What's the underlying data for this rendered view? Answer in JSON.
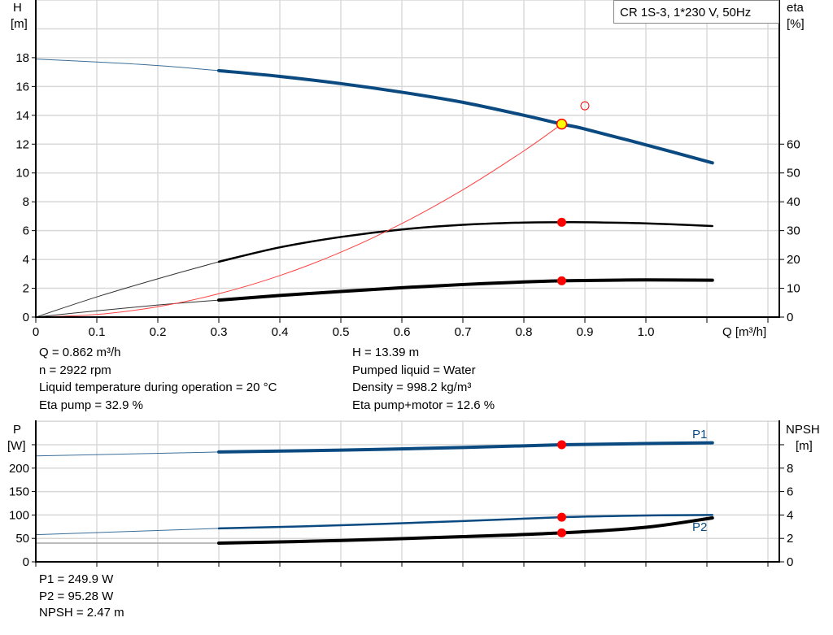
{
  "chart_data": [
    {
      "type": "line",
      "title": "CR 1S-3, 1*230 V, 50Hz",
      "xlabel": "Q [m³/h]",
      "ylabel_left": [
        "H",
        "[m]"
      ],
      "ylabel_right": [
        "eta",
        "[%]"
      ],
      "xlim": [
        0,
        1.2
      ],
      "ylim_left": [
        0,
        22
      ],
      "ylim_right": [
        0,
        110
      ],
      "x_ticks": [
        "0",
        "0.1",
        "0.2",
        "0.3",
        "0.4",
        "0.5",
        "0.6",
        "0.7",
        "0.8",
        "0.9",
        "1.0"
      ],
      "y_ticks_left": [
        "0",
        "2",
        "4",
        "6",
        "8",
        "10",
        "12",
        "14",
        "16",
        "18"
      ],
      "y_ticks_right": [
        "0",
        "10",
        "20",
        "30",
        "40",
        "50",
        "60"
      ],
      "grid": true,
      "extrapolated_below_q": 0.3,
      "series": [
        {
          "id": "H",
          "axis": "left",
          "color": "#0a4a80",
          "x": [
            0,
            0.1,
            0.2,
            0.3,
            0.4,
            0.5,
            0.6,
            0.7,
            0.8,
            0.862,
            0.9,
            1.0,
            1.109
          ],
          "y": [
            17.9,
            17.7,
            17.45,
            17.1,
            16.7,
            16.2,
            15.6,
            14.9,
            14.0,
            13.39,
            13.05,
            11.95,
            10.7
          ]
        },
        {
          "id": "eta_pump",
          "axis": "right",
          "color": "#000000",
          "x": [
            0,
            0.1,
            0.2,
            0.3,
            0.4,
            0.5,
            0.6,
            0.7,
            0.8,
            0.862,
            0.9,
            1.0,
            1.109
          ],
          "y": [
            0,
            7.0,
            13.3,
            19.2,
            24.2,
            27.8,
            30.4,
            32.0,
            32.8,
            32.9,
            32.9,
            32.5,
            31.6
          ]
        },
        {
          "id": "eta_pump_motor",
          "axis": "right",
          "color": "#000000",
          "x": [
            0,
            0.1,
            0.2,
            0.3,
            0.4,
            0.5,
            0.6,
            0.7,
            0.8,
            0.862,
            0.9,
            1.0,
            1.109
          ],
          "y": [
            0,
            2.2,
            4.2,
            5.9,
            7.5,
            8.9,
            10.2,
            11.3,
            12.2,
            12.6,
            12.7,
            12.9,
            12.8
          ]
        },
        {
          "id": "system_curve",
          "axis": "left",
          "color": "#ff4040",
          "x": [
            0,
            0.1,
            0.2,
            0.3,
            0.4,
            0.5,
            0.6,
            0.7,
            0.8,
            0.862
          ],
          "y": [
            0,
            0.18,
            0.72,
            1.62,
            2.88,
            4.5,
            6.49,
            8.83,
            11.53,
            13.39
          ]
        }
      ],
      "operating_point": {
        "q": 0.862,
        "h": 13.39,
        "eta_pump": 32.9,
        "eta_pump_motor": 12.6
      },
      "requested_point": {
        "q": 0.9,
        "h": 14.66
      }
    },
    {
      "type": "line",
      "xlabel": "",
      "ylabel_left": [
        "P",
        "[W]"
      ],
      "ylabel_right": [
        "NPSH",
        "[m]"
      ],
      "xlim": [
        0,
        1.2
      ],
      "ylim_left": [
        0,
        302
      ],
      "ylim_right": [
        0,
        12.08
      ],
      "y_ticks_left": [
        "0",
        "50",
        "100",
        "150",
        "200"
      ],
      "y_ticks_right": [
        "0",
        "2",
        "4",
        "6",
        "8"
      ],
      "grid": true,
      "extrapolated_below_q": 0.3,
      "series": [
        {
          "id": "P1",
          "name": "P1",
          "axis": "left",
          "color": "#0a4a80",
          "x": [
            0,
            0.3,
            0.5,
            0.7,
            0.862,
            1.0,
            1.109
          ],
          "y": [
            226,
            234.5,
            238.5,
            244,
            249.9,
            252.5,
            254
          ]
        },
        {
          "id": "P2",
          "name": "P2",
          "axis": "left",
          "color": "#0a4a80",
          "x": [
            0,
            0.3,
            0.5,
            0.7,
            0.862,
            1.0,
            1.109
          ],
          "y": [
            58,
            71.3,
            78,
            87,
            95.28,
            99,
            100
          ]
        },
        {
          "id": "NPSH",
          "axis": "right",
          "color": "#000000",
          "x": [
            0,
            0.3,
            0.5,
            0.7,
            0.862,
            1.0,
            1.109
          ],
          "y": [
            1.6,
            1.6,
            1.82,
            2.15,
            2.47,
            2.95,
            3.75
          ]
        }
      ],
      "operating_point": {
        "q": 0.862,
        "p1": 249.9,
        "p2": 95.28,
        "npsh": 2.47
      }
    }
  ],
  "info": {
    "left": [
      "Q = 0.862 m³/h",
      "n = 2922 rpm",
      "Liquid temperature during operation = 20 °C",
      "Eta pump = 32.9 %"
    ],
    "right": [
      "H = 13.39 m",
      "Pumped liquid = Water",
      "Density = 998.2 kg/m³",
      "Eta pump+motor = 12.6 %"
    ],
    "bottom": [
      "P1 = 249.9 W",
      "P2 = 95.28 W",
      "NPSH = 2.47 m"
    ]
  },
  "colors": {
    "head": "#0a4a80",
    "marker": "#ff0000",
    "op_fill": "#ffff00",
    "grid": "#c8c8c8"
  }
}
